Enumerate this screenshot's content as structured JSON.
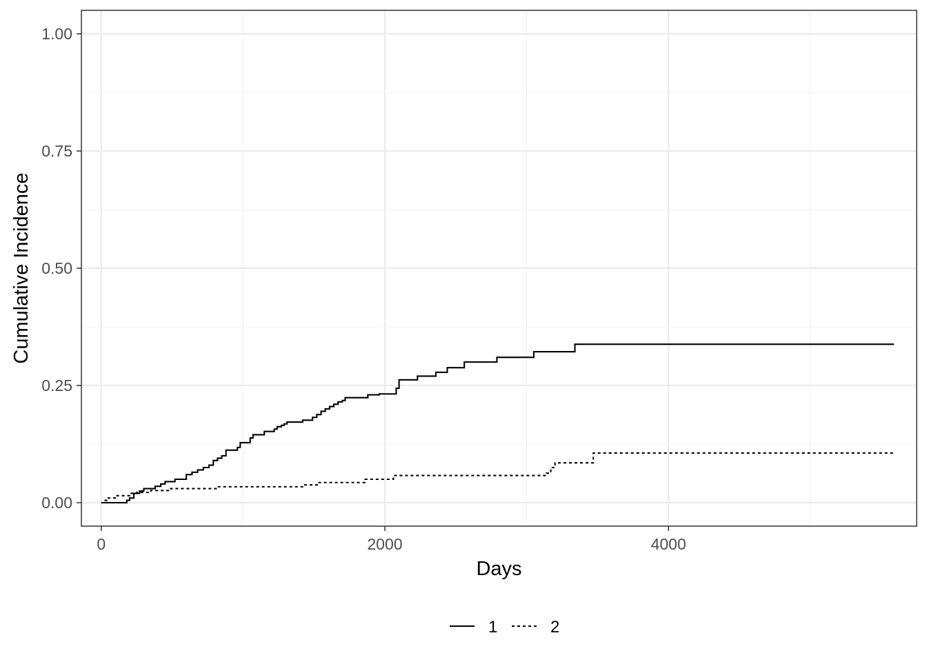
{
  "chart_data": {
    "type": "line",
    "step": true,
    "xlabel": "Days",
    "ylabel": "Cumulative Incidence",
    "xlim": [
      -140,
      5750
    ],
    "ylim": [
      -0.05,
      1.05
    ],
    "x_ticks": [
      0,
      2000,
      4000
    ],
    "x_tick_labels": [
      "0",
      "2000",
      "4000"
    ],
    "y_ticks": [
      0.0,
      0.25,
      0.5,
      0.75,
      1.0
    ],
    "y_tick_labels": [
      "0.00",
      "0.25",
      "0.50",
      "0.75",
      "1.00"
    ],
    "grid": true,
    "legend_position": "bottom",
    "colors": {
      "line": "#000000",
      "grid_major": "#ebebeb",
      "grid_minor": "#f2f2f2",
      "border": "#333333",
      "tick_text": "#4d4d4d"
    },
    "series": [
      {
        "name": "1",
        "linestyle": "solid",
        "x": [
          0,
          180,
          200,
          230,
          270,
          300,
          380,
          420,
          450,
          520,
          600,
          640,
          680,
          720,
          760,
          790,
          820,
          850,
          880,
          960,
          980,
          1050,
          1070,
          1150,
          1220,
          1240,
          1270,
          1290,
          1310,
          1420,
          1490,
          1520,
          1550,
          1580,
          1610,
          1640,
          1670,
          1700,
          1720,
          1880,
          1960,
          2080,
          2100,
          2230,
          2360,
          2440,
          2560,
          2790,
          3050,
          3340,
          5590
        ],
        "y": [
          0.0,
          0.005,
          0.01,
          0.02,
          0.025,
          0.03,
          0.035,
          0.04,
          0.045,
          0.05,
          0.06,
          0.065,
          0.07,
          0.075,
          0.08,
          0.09,
          0.095,
          0.1,
          0.112,
          0.118,
          0.128,
          0.138,
          0.145,
          0.152,
          0.157,
          0.162,
          0.165,
          0.168,
          0.172,
          0.176,
          0.182,
          0.188,
          0.195,
          0.2,
          0.205,
          0.21,
          0.215,
          0.218,
          0.224,
          0.23,
          0.232,
          0.244,
          0.262,
          0.27,
          0.278,
          0.288,
          0.3,
          0.31,
          0.322,
          0.338,
          0.338
        ]
      },
      {
        "name": "2",
        "linestyle": "dashed",
        "x": [
          0,
          20,
          40,
          100,
          200,
          250,
          350,
          490,
          810,
          1430,
          1530,
          1860,
          2060,
          3140,
          3170,
          3200,
          3470,
          5590
        ],
        "y": [
          0.0,
          0.005,
          0.01,
          0.015,
          0.02,
          0.022,
          0.026,
          0.03,
          0.034,
          0.038,
          0.043,
          0.05,
          0.058,
          0.063,
          0.075,
          0.085,
          0.106,
          0.106
        ]
      }
    ]
  }
}
